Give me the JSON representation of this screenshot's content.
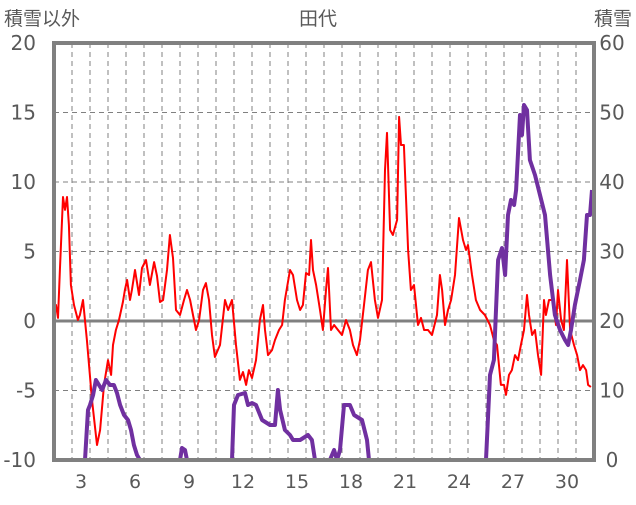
{
  "chart_data": {
    "type": "line",
    "title": "田代",
    "ylabel_left": "積雪以外",
    "ylabel_right": "積雪",
    "xlabel": "",
    "x_ticks": [
      "3",
      "6",
      "9",
      "12",
      "15",
      "18",
      "21",
      "24",
      "27",
      "30"
    ],
    "x_tick_values": [
      3,
      6,
      9,
      12,
      15,
      18,
      21,
      24,
      27,
      30
    ],
    "xlim": [
      1.5,
      31.5
    ],
    "ylim_left": [
      -10,
      20
    ],
    "ylim_right": [
      0,
      60
    ],
    "y_ticks_left": [
      "20",
      "15",
      "10",
      "5",
      "0",
      "-5",
      "-10"
    ],
    "y_ticks_left_values": [
      20,
      15,
      10,
      5,
      0,
      -5,
      -10
    ],
    "y_ticks_right": [
      "60",
      "50",
      "40",
      "30",
      "20",
      "10",
      "0"
    ],
    "y_ticks_right_values": [
      60,
      50,
      40,
      30,
      20,
      10,
      0
    ],
    "grid": true,
    "series": [
      {
        "name": "積雪以外",
        "axis": "left",
        "color": "#FF0000",
        "points": [
          [
            1.5,
            0.22
          ],
          [
            1.61,
            1.15
          ],
          [
            1.72,
            0.22
          ],
          [
            1.83,
            3.67
          ],
          [
            2.0,
            8.92
          ],
          [
            2.11,
            7.99
          ],
          [
            2.22,
            8.92
          ],
          [
            2.33,
            6.91
          ],
          [
            2.44,
            2.59
          ],
          [
            2.61,
            1.15
          ],
          [
            2.83,
            0.07
          ],
          [
            2.94,
            0.43
          ],
          [
            3.11,
            1.51
          ],
          [
            3.33,
            -1.37
          ],
          [
            3.61,
            -5.68
          ],
          [
            3.89,
            -8.92
          ],
          [
            4.06,
            -7.84
          ],
          [
            4.28,
            -4.6
          ],
          [
            4.5,
            -2.81
          ],
          [
            4.67,
            -3.88
          ],
          [
            4.78,
            -1.73
          ],
          [
            4.94,
            -0.65
          ],
          [
            5.11,
            0.07
          ],
          [
            5.33,
            1.37
          ],
          [
            5.44,
            2.23
          ],
          [
            5.56,
            2.95
          ],
          [
            5.72,
            1.51
          ],
          [
            5.83,
            2.23
          ],
          [
            6.0,
            3.67
          ],
          [
            6.22,
            1.87
          ],
          [
            6.39,
            3.81
          ],
          [
            6.61,
            4.39
          ],
          [
            6.83,
            2.59
          ],
          [
            7.06,
            4.24
          ],
          [
            7.22,
            3.24
          ],
          [
            7.39,
            1.37
          ],
          [
            7.56,
            1.51
          ],
          [
            7.78,
            3.67
          ],
          [
            7.94,
            6.19
          ],
          [
            8.11,
            4.53
          ],
          [
            8.28,
            0.79
          ],
          [
            8.5,
            0.43
          ],
          [
            8.72,
            1.51
          ],
          [
            8.89,
            2.23
          ],
          [
            9.06,
            1.51
          ],
          [
            9.22,
            0.43
          ],
          [
            9.39,
            -0.65
          ],
          [
            9.56,
            0.07
          ],
          [
            9.78,
            2.23
          ],
          [
            9.94,
            2.73
          ],
          [
            10.11,
            1.51
          ],
          [
            10.28,
            -1.01
          ],
          [
            10.44,
            -2.59
          ],
          [
            10.72,
            -1.73
          ],
          [
            11.0,
            1.51
          ],
          [
            11.17,
            0.79
          ],
          [
            11.39,
            1.51
          ],
          [
            11.61,
            -1.73
          ],
          [
            11.83,
            -4.24
          ],
          [
            12.0,
            -3.67
          ],
          [
            12.17,
            -4.6
          ],
          [
            12.33,
            -3.53
          ],
          [
            12.5,
            -4.1
          ],
          [
            12.72,
            -2.81
          ],
          [
            12.94,
            0.07
          ],
          [
            13.11,
            1.15
          ],
          [
            13.22,
            -0.65
          ],
          [
            13.39,
            -2.45
          ],
          [
            13.61,
            -2.09
          ],
          [
            13.78,
            -1.37
          ],
          [
            14.0,
            -0.65
          ],
          [
            14.17,
            -0.29
          ],
          [
            14.33,
            1.51
          ],
          [
            14.61,
            3.67
          ],
          [
            14.78,
            3.31
          ],
          [
            15.0,
            1.51
          ],
          [
            15.17,
            0.79
          ],
          [
            15.33,
            1.15
          ],
          [
            15.5,
            3.45
          ],
          [
            15.67,
            3.31
          ],
          [
            15.78,
            5.83
          ],
          [
            15.89,
            3.67
          ],
          [
            16.06,
            2.59
          ],
          [
            16.28,
            0.79
          ],
          [
            16.44,
            -0.65
          ],
          [
            16.61,
            2.23
          ],
          [
            16.72,
            3.81
          ],
          [
            16.89,
            -0.65
          ],
          [
            17.06,
            -0.29
          ],
          [
            17.28,
            -0.65
          ],
          [
            17.5,
            -1.01
          ],
          [
            17.72,
            0.07
          ],
          [
            17.94,
            -0.65
          ],
          [
            18.11,
            -1.73
          ],
          [
            18.33,
            -2.45
          ],
          [
            18.5,
            -1.37
          ],
          [
            18.72,
            1.15
          ],
          [
            18.94,
            3.67
          ],
          [
            19.11,
            4.24
          ],
          [
            19.33,
            1.51
          ],
          [
            19.5,
            0.22
          ],
          [
            19.72,
            1.51
          ],
          [
            19.89,
            10.86
          ],
          [
            20.0,
            13.53
          ],
          [
            20.17,
            6.55
          ],
          [
            20.33,
            6.19
          ],
          [
            20.56,
            7.27
          ],
          [
            20.67,
            14.68
          ],
          [
            20.78,
            12.66
          ],
          [
            20.94,
            12.66
          ],
          [
            21.17,
            5.11
          ],
          [
            21.33,
            2.23
          ],
          [
            21.5,
            2.59
          ],
          [
            21.72,
            -0.29
          ],
          [
            21.89,
            0.22
          ],
          [
            22.06,
            -0.65
          ],
          [
            22.28,
            -0.65
          ],
          [
            22.5,
            -1.01
          ],
          [
            22.78,
            0.43
          ],
          [
            22.94,
            3.31
          ],
          [
            23.06,
            2.23
          ],
          [
            23.22,
            -0.29
          ],
          [
            23.39,
            0.79
          ],
          [
            23.56,
            1.51
          ],
          [
            23.78,
            3.31
          ],
          [
            24.0,
            7.41
          ],
          [
            24.22,
            5.83
          ],
          [
            24.39,
            5.11
          ],
          [
            24.5,
            5.47
          ],
          [
            24.72,
            3.31
          ],
          [
            24.94,
            1.51
          ],
          [
            25.17,
            0.79
          ],
          [
            25.44,
            0.43
          ],
          [
            25.72,
            -0.29
          ],
          [
            25.94,
            -1.37
          ],
          [
            26.11,
            -1.73
          ],
          [
            26.33,
            -4.6
          ],
          [
            26.5,
            -4.6
          ],
          [
            26.61,
            -5.32
          ],
          [
            26.78,
            -3.88
          ],
          [
            26.94,
            -3.53
          ],
          [
            27.11,
            -2.45
          ],
          [
            27.28,
            -2.81
          ],
          [
            27.44,
            -1.73
          ],
          [
            27.61,
            -0.65
          ],
          [
            27.78,
            1.87
          ],
          [
            27.89,
            0.43
          ],
          [
            28.06,
            -1.01
          ],
          [
            28.22,
            -0.65
          ],
          [
            28.39,
            -2.45
          ],
          [
            28.56,
            -3.88
          ],
          [
            28.72,
            1.51
          ],
          [
            28.83,
            0.43
          ],
          [
            29.0,
            1.51
          ],
          [
            29.22,
            1.51
          ],
          [
            29.39,
            -0.29
          ],
          [
            29.5,
            2.23
          ],
          [
            29.67,
            0.07
          ],
          [
            29.83,
            -0.65
          ],
          [
            30.0,
            4.39
          ],
          [
            30.17,
            -0.65
          ],
          [
            30.39,
            -1.73
          ],
          [
            30.56,
            -2.45
          ],
          [
            30.72,
            -3.53
          ],
          [
            30.89,
            -3.17
          ],
          [
            31.06,
            -3.53
          ],
          [
            31.17,
            -4.6
          ],
          [
            31.33,
            -4.75
          ]
        ]
      },
      {
        "name": "積雪",
        "axis": "right",
        "color": "#7030A0",
        "points": [
          [
            1.5,
            0
          ],
          [
            3.22,
            0
          ],
          [
            3.39,
            7.19
          ],
          [
            3.5,
            7.91
          ],
          [
            3.67,
            9.35
          ],
          [
            3.83,
            11.51
          ],
          [
            4.0,
            10.79
          ],
          [
            4.17,
            10.07
          ],
          [
            4.39,
            11.51
          ],
          [
            4.61,
            10.79
          ],
          [
            4.83,
            10.79
          ],
          [
            5.0,
            9.64
          ],
          [
            5.17,
            7.91
          ],
          [
            5.39,
            6.47
          ],
          [
            5.61,
            5.76
          ],
          [
            5.78,
            4.32
          ],
          [
            5.94,
            2.16
          ],
          [
            6.11,
            0.72
          ],
          [
            6.28,
            0
          ],
          [
            8.5,
            0
          ],
          [
            8.61,
            1.73
          ],
          [
            8.78,
            1.44
          ],
          [
            8.89,
            0
          ],
          [
            11.39,
            0
          ],
          [
            11.5,
            7.91
          ],
          [
            11.72,
            9.35
          ],
          [
            12.11,
            9.64
          ],
          [
            12.28,
            7.91
          ],
          [
            12.5,
            8.2
          ],
          [
            12.72,
            7.91
          ],
          [
            13.06,
            5.76
          ],
          [
            13.5,
            5.04
          ],
          [
            13.78,
            5.04
          ],
          [
            13.94,
            10.07
          ],
          [
            14.06,
            7.19
          ],
          [
            14.33,
            4.32
          ],
          [
            14.61,
            3.6
          ],
          [
            14.78,
            2.88
          ],
          [
            15.17,
            2.88
          ],
          [
            15.61,
            3.6
          ],
          [
            15.83,
            2.88
          ],
          [
            16.0,
            0
          ],
          [
            16.83,
            0
          ],
          [
            17.06,
            1.44
          ],
          [
            17.22,
            0
          ],
          [
            17.39,
            1.44
          ],
          [
            17.61,
            7.91
          ],
          [
            17.94,
            7.91
          ],
          [
            18.17,
            6.47
          ],
          [
            18.61,
            5.76
          ],
          [
            18.89,
            2.88
          ],
          [
            19.0,
            0
          ],
          [
            25.5,
            0
          ],
          [
            25.72,
            12.23
          ],
          [
            25.94,
            14.39
          ],
          [
            26.17,
            28.78
          ],
          [
            26.39,
            30.5
          ],
          [
            26.56,
            26.62
          ],
          [
            26.72,
            35.25
          ],
          [
            26.89,
            37.41
          ],
          [
            27.06,
            36.69
          ],
          [
            27.17,
            38.85
          ],
          [
            27.39,
            49.64
          ],
          [
            27.5,
            46.76
          ],
          [
            27.61,
            51.08
          ],
          [
            27.78,
            50.36
          ],
          [
            27.94,
            43.17
          ],
          [
            28.22,
            41.01
          ],
          [
            28.5,
            38.13
          ],
          [
            28.78,
            35.25
          ],
          [
            29.06,
            26.62
          ],
          [
            29.33,
            20.86
          ],
          [
            29.61,
            18.71
          ],
          [
            29.89,
            17.27
          ],
          [
            30.06,
            16.55
          ],
          [
            30.22,
            18.71
          ],
          [
            30.44,
            22.3
          ],
          [
            30.72,
            25.9
          ],
          [
            30.94,
            28.78
          ],
          [
            31.11,
            35.25
          ],
          [
            31.28,
            35.25
          ],
          [
            31.39,
            38.85
          ]
        ]
      }
    ]
  }
}
